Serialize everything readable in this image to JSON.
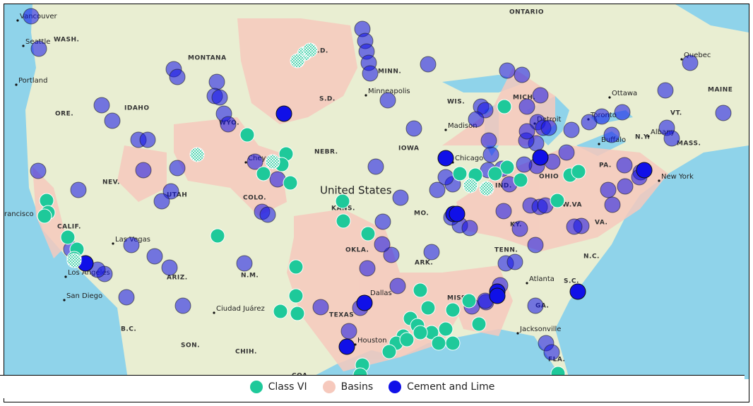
{
  "map": {
    "labels": [
      "Vancouver",
      "WASH.",
      "Seattle",
      "Portland",
      "ORE.",
      "IDAHO",
      "MONTANA",
      "WYO.",
      "N.D.",
      "S.D.",
      "MINN.",
      "Minneapolis",
      "ONTARIO",
      "Quebec",
      "Ottawa",
      "MAINE",
      "VT.",
      "Toronto",
      "Buffalo",
      "N.Y.",
      "Albany",
      "MASS.",
      "Detroit",
      "MICH.",
      "WIS.",
      "Madison",
      "Chicago",
      "IOWA",
      "NEBR.",
      "NEV.",
      "UTAH",
      "COLO.",
      "United States",
      "KANS.",
      "MO.",
      "OHIO",
      "PA.",
      "New York",
      "IND.",
      "W.VA",
      "VA.",
      "KY.",
      "TENN.",
      "N.C.",
      "S.C.",
      "Atlanta",
      "GA.",
      "MISS",
      "ARK.",
      "OKLA.",
      "Dallas",
      "TEXAS",
      "Houston",
      "N.M.",
      "ARIZ.",
      "Las Vegas",
      "CALIF.",
      "Los Angeles",
      "San Diego",
      "rancisco",
      "Ciudad Juárez",
      "B.C.",
      "SON.",
      "CHIH.",
      "COA.",
      "Jacksonville",
      "FLA.",
      "Cheyenne"
    ]
  },
  "legend": {
    "items": [
      {
        "label": "Class VI",
        "color": "#1ec99a"
      },
      {
        "label": "Basins",
        "color": "#f6c9bd"
      },
      {
        "label": "Cement and Lime",
        "color": "#1010e8"
      }
    ]
  }
}
